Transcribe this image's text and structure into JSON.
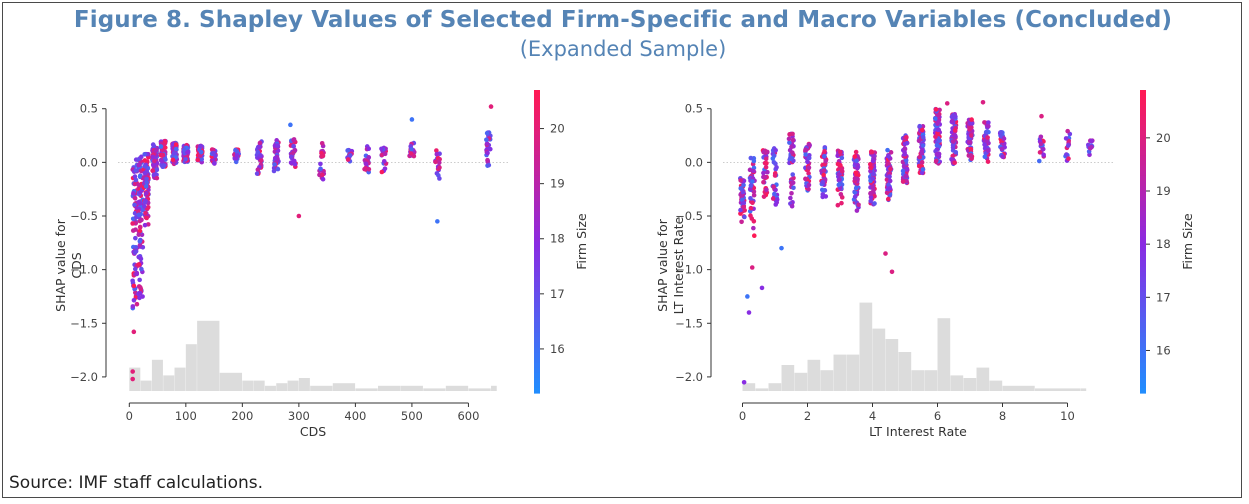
{
  "figure": {
    "title": "Figure 8. Shapley Values of Selected Firm-Specific and Macro Variables (Concluded)",
    "subtitle": "(Expanded Sample)",
    "source": "Source: IMF staff calculations."
  },
  "colors": {
    "title": "#5584b5",
    "low": "#1e90ff",
    "mid": "#8a2be2",
    "high": "#ff1a55",
    "hist": "#dcdcdc"
  },
  "chart_data": [
    {
      "type": "scatter",
      "xlabel": "CDS",
      "ylabel_lines": [
        "SHAP value for",
        "CDS"
      ],
      "xlim": [
        -20,
        670
      ],
      "ylim": [
        -2.15,
        0.6
      ],
      "xticks": [
        0,
        100,
        200,
        300,
        400,
        500,
        600
      ],
      "yticks": [
        0.5,
        0.0,
        -0.5,
        -1.0,
        -1.5,
        -2.0
      ],
      "ytick_labels": [
        "0.5",
        "0.0",
        "−0.5",
        "−1.0",
        "−1.5",
        "−2.0"
      ],
      "colorbar": {
        "label": "Firm Size",
        "range": [
          15.2,
          20.7
        ],
        "ticks": [
          16,
          17,
          18,
          19,
          20
        ]
      },
      "x_clusters": [
        {
          "x": 10,
          "ymin": -1.4,
          "ymax": 0.05,
          "n": 80
        },
        {
          "x": 20,
          "ymin": -1.35,
          "ymax": 0.08,
          "n": 80
        },
        {
          "x": 30,
          "ymin": -0.6,
          "ymax": 0.1,
          "n": 70
        },
        {
          "x": 45,
          "ymin": -0.15,
          "ymax": 0.17,
          "n": 70
        },
        {
          "x": 60,
          "ymin": -0.05,
          "ymax": 0.2,
          "n": 70
        },
        {
          "x": 80,
          "ymin": -0.02,
          "ymax": 0.18,
          "n": 70
        },
        {
          "x": 100,
          "ymin": 0.0,
          "ymax": 0.16,
          "n": 60
        },
        {
          "x": 125,
          "ymin": 0.0,
          "ymax": 0.16,
          "n": 50
        },
        {
          "x": 150,
          "ymin": -0.02,
          "ymax": 0.12,
          "n": 35
        },
        {
          "x": 190,
          "ymin": 0.0,
          "ymax": 0.12,
          "n": 30
        },
        {
          "x": 230,
          "ymin": -0.12,
          "ymax": 0.2,
          "n": 30
        },
        {
          "x": 260,
          "ymin": -0.1,
          "ymax": 0.22,
          "n": 35
        },
        {
          "x": 290,
          "ymin": -0.05,
          "ymax": 0.22,
          "n": 30
        },
        {
          "x": 340,
          "ymin": -0.2,
          "ymax": 0.2,
          "n": 20
        },
        {
          "x": 390,
          "ymin": 0.0,
          "ymax": 0.12,
          "n": 15
        },
        {
          "x": 420,
          "ymin": -0.1,
          "ymax": 0.15,
          "n": 18
        },
        {
          "x": 450,
          "ymin": -0.1,
          "ymax": 0.15,
          "n": 18
        },
        {
          "x": 500,
          "ymin": 0.0,
          "ymax": 0.2,
          "n": 20
        },
        {
          "x": 545,
          "ymin": -0.15,
          "ymax": 0.12,
          "n": 18
        },
        {
          "x": 635,
          "ymin": -0.05,
          "ymax": 0.28,
          "n": 25
        }
      ],
      "outliers": [
        {
          "x": 8,
          "y": -1.58,
          "c": 20
        },
        {
          "x": 6,
          "y": -1.95,
          "c": 20
        },
        {
          "x": 6,
          "y": -2.02,
          "c": 20
        },
        {
          "x": 300,
          "y": -0.5,
          "c": 20
        },
        {
          "x": 545,
          "y": -0.55,
          "c": 16
        },
        {
          "x": 640,
          "y": 0.52,
          "c": 20
        },
        {
          "x": 500,
          "y": 0.4,
          "c": 16
        },
        {
          "x": 285,
          "y": 0.35,
          "c": 16
        }
      ],
      "histogram": {
        "bins": [
          0,
          20,
          40,
          60,
          80,
          100,
          120,
          160,
          200,
          220,
          240,
          260,
          280,
          300,
          320,
          360,
          400,
          440,
          480,
          520,
          560,
          600,
          640
        ],
        "counts": [
          9,
          4,
          12,
          6,
          9,
          18,
          27,
          7,
          4,
          4,
          2,
          3,
          4,
          5,
          2,
          3,
          1,
          2,
          2,
          1,
          2,
          1,
          2
        ]
      }
    },
    {
      "type": "scatter",
      "xlabel": "LT Interest Rate",
      "ylabel_lines": [
        "SHAP value for",
        "LT Interest Rate"
      ],
      "xlim": [
        -0.6,
        11.4
      ],
      "ylim": [
        -2.15,
        0.6
      ],
      "xticks": [
        0,
        2,
        4,
        6,
        8,
        10
      ],
      "yticks": [
        0.5,
        0.0,
        -0.5,
        -1.0,
        -1.5,
        -2.0
      ],
      "ytick_labels": [
        "0.5",
        "0.0",
        "−0.5",
        "−1.0",
        "−1.5",
        "−2.0"
      ],
      "colorbar": {
        "label": "Firm Size",
        "range": [
          15.2,
          20.9
        ],
        "ticks": [
          16,
          17,
          18,
          19,
          20
        ]
      },
      "x_clusters": [
        {
          "x": 0.0,
          "ymin": -0.6,
          "ymax": -0.1,
          "n": 40
        },
        {
          "x": 0.3,
          "ymin": -0.7,
          "ymax": 0.05,
          "n": 40
        },
        {
          "x": 0.7,
          "ymin": -0.35,
          "ymax": 0.15,
          "n": 30
        },
        {
          "x": 1.0,
          "ymin": -0.45,
          "ymax": 0.15,
          "n": 30
        },
        {
          "x": 1.5,
          "ymin": -0.45,
          "ymax": 0.28,
          "n": 40
        },
        {
          "x": 2.0,
          "ymin": -0.3,
          "ymax": 0.18,
          "n": 40
        },
        {
          "x": 2.5,
          "ymin": -0.35,
          "ymax": 0.15,
          "n": 40
        },
        {
          "x": 3.0,
          "ymin": -0.4,
          "ymax": 0.12,
          "n": 50
        },
        {
          "x": 3.5,
          "ymin": -0.45,
          "ymax": 0.1,
          "n": 60
        },
        {
          "x": 4.0,
          "ymin": -0.4,
          "ymax": 0.1,
          "n": 60
        },
        {
          "x": 4.5,
          "ymin": -0.35,
          "ymax": 0.12,
          "n": 60
        },
        {
          "x": 5.0,
          "ymin": -0.2,
          "ymax": 0.25,
          "n": 60
        },
        {
          "x": 5.5,
          "ymin": -0.1,
          "ymax": 0.35,
          "n": 60
        },
        {
          "x": 6.0,
          "ymin": -0.05,
          "ymax": 0.5,
          "n": 70
        },
        {
          "x": 6.5,
          "ymin": -0.05,
          "ymax": 0.45,
          "n": 60
        },
        {
          "x": 7.0,
          "ymin": 0.0,
          "ymax": 0.4,
          "n": 50
        },
        {
          "x": 7.5,
          "ymin": 0.0,
          "ymax": 0.38,
          "n": 40
        },
        {
          "x": 8.0,
          "ymin": 0.0,
          "ymax": 0.3,
          "n": 30
        },
        {
          "x": 9.2,
          "ymin": 0.0,
          "ymax": 0.25,
          "n": 15
        },
        {
          "x": 10.0,
          "ymin": 0.0,
          "ymax": 0.3,
          "n": 15
        },
        {
          "x": 10.7,
          "ymin": 0.05,
          "ymax": 0.22,
          "n": 12
        }
      ],
      "outliers": [
        {
          "x": 0.05,
          "y": -2.05,
          "c": 18
        },
        {
          "x": 0.2,
          "y": -1.4,
          "c": 18
        },
        {
          "x": 0.15,
          "y": -1.25,
          "c": 16
        },
        {
          "x": 0.6,
          "y": -1.17,
          "c": 18
        },
        {
          "x": 0.3,
          "y": -0.98,
          "c": 20
        },
        {
          "x": 1.2,
          "y": -0.8,
          "c": 16
        },
        {
          "x": 4.4,
          "y": -0.85,
          "c": 20
        },
        {
          "x": 4.6,
          "y": -1.02,
          "c": 20
        },
        {
          "x": 6.3,
          "y": 0.55,
          "c": 20
        },
        {
          "x": 7.4,
          "y": 0.56,
          "c": 20
        },
        {
          "x": 9.2,
          "y": 0.43,
          "c": 20
        }
      ],
      "histogram": {
        "bins": [
          0,
          0.4,
          0.8,
          1.2,
          1.6,
          2.0,
          2.4,
          2.8,
          3.2,
          3.6,
          4.0,
          4.4,
          4.8,
          5.2,
          5.6,
          6.0,
          6.4,
          6.8,
          7.2,
          7.6,
          8.0,
          9.0,
          10.4
        ],
        "counts": [
          3,
          1,
          3,
          10,
          7,
          12,
          8,
          14,
          14,
          34,
          24,
          20,
          15,
          8,
          8,
          28,
          6,
          5,
          9,
          4,
          2,
          1,
          1
        ]
      }
    }
  ]
}
